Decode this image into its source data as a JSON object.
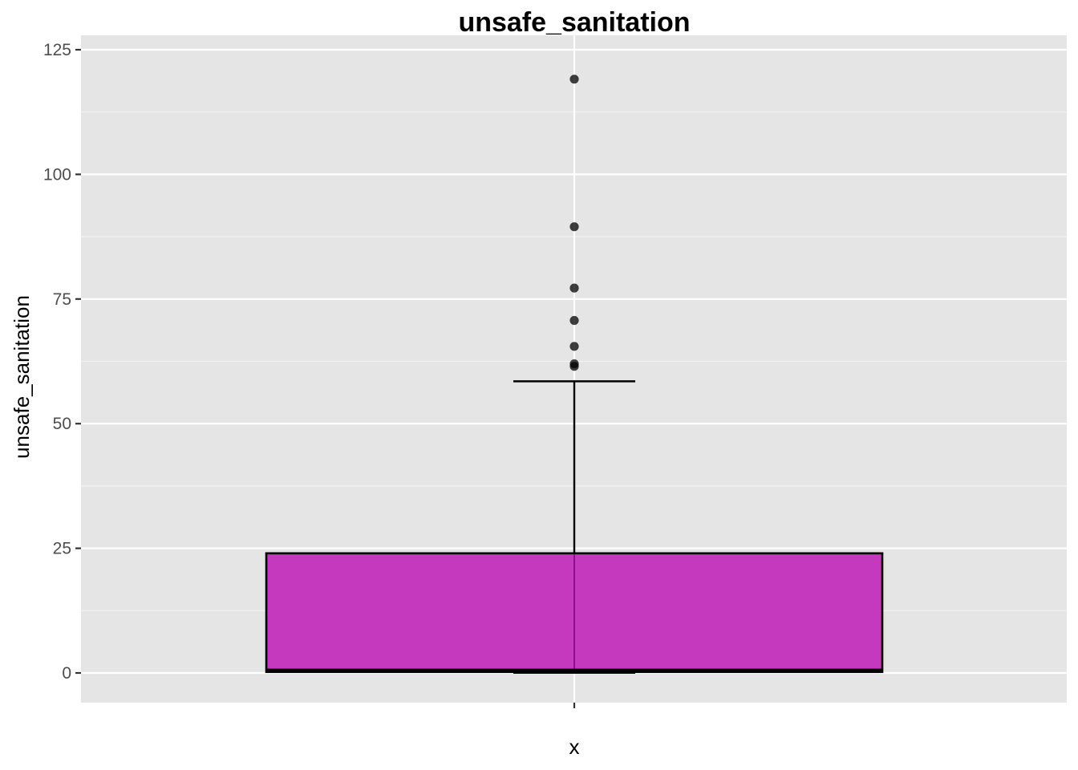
{
  "chart_data": {
    "type": "boxplot",
    "title": "unsafe_sanitation",
    "xlabel": "x",
    "ylabel": "unsafe_sanitation",
    "categories": [
      "x"
    ],
    "ylim": [
      -6,
      125
    ],
    "yticks": [
      0,
      25,
      50,
      75,
      100,
      125
    ],
    "ytick_labels": [
      "0",
      "25",
      "50",
      "75",
      "100",
      "125"
    ],
    "box": {
      "min": 0,
      "q1": 0.2,
      "median": 0.5,
      "q3": 24.0,
      "whisker_low": 0,
      "whisker_high": 58.5
    },
    "outliers": [
      61.5,
      62.0,
      65.5,
      70.7,
      77.2,
      89.5,
      119.1
    ],
    "grid": true,
    "legend": "none",
    "colors": {
      "box_fill": "#c026b8",
      "box_stroke": "#000000",
      "panel_background": "#e5e5e5",
      "grid_major": "#ffffff",
      "grid_minor": "#f2f2f2",
      "outlier": "#000000"
    }
  }
}
